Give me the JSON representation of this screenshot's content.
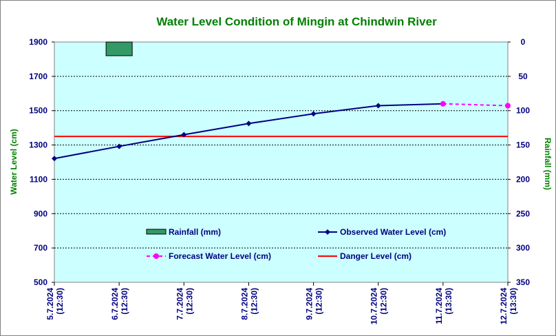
{
  "chart_data": {
    "type": "line",
    "title": "Water Level Condition of Mingin at Chindwin River",
    "ylabel": "Water Level (cm)",
    "y2label": "Rainfall (mm)",
    "ylim": [
      500,
      1900
    ],
    "yticks": [
      500,
      700,
      900,
      1100,
      1300,
      1500,
      1700,
      1900
    ],
    "y2lim": [
      0,
      350
    ],
    "y2ticks": [
      0,
      50,
      100,
      150,
      200,
      250,
      300,
      350
    ],
    "y2_inverted": true,
    "grid": "horizontal-dashed",
    "background_color": "#ccffff",
    "categories": [
      {
        "date": "5.7.2024",
        "time": "(12:30)"
      },
      {
        "date": "6.7.2024",
        "time": "(12:30)"
      },
      {
        "date": "7.7.2024",
        "time": "(12:30)"
      },
      {
        "date": "8.7.2024",
        "time": "(12:30)"
      },
      {
        "date": "9.7.2024",
        "time": "(12:30)"
      },
      {
        "date": "10.7.2024",
        "time": "(12:30)"
      },
      {
        "date": "11.7.2024",
        "time": "(13:30)"
      },
      {
        "date": "12.7.2024",
        "time": "(13:30)"
      }
    ],
    "series": [
      {
        "name": "Rainfall (mm)",
        "kind": "bar",
        "axis": "y2",
        "color": "#339966",
        "values": [
          null,
          20,
          null,
          null,
          null,
          null,
          null,
          null
        ]
      },
      {
        "name": "Observed Water Level (cm)",
        "kind": "line",
        "marker": "diamond",
        "color": "#000080",
        "values": [
          1221,
          1292,
          1360,
          1425,
          1482,
          1529,
          1540,
          null
        ]
      },
      {
        "name": "Forecast Water Level (cm)",
        "kind": "line",
        "dashed": true,
        "marker": "circle",
        "color": "#ff00ff",
        "values": [
          null,
          null,
          null,
          null,
          null,
          null,
          1540,
          1529
        ]
      },
      {
        "name": "Danger Level (cm)",
        "kind": "hline",
        "color": "#ff0000",
        "value": 1350
      }
    ]
  }
}
